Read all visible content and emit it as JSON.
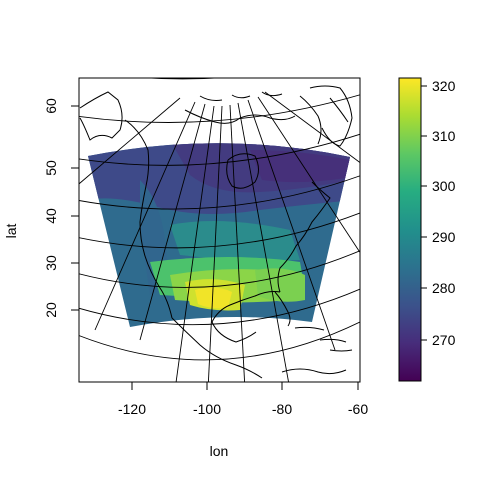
{
  "map": {
    "x_label": "lon",
    "y_label": "lat",
    "x_ticks": [
      "-120",
      "-100",
      "-80",
      "-60"
    ],
    "y_ticks": [
      "20",
      "30",
      "40",
      "50",
      "60"
    ],
    "x_range": [
      -134,
      -58
    ],
    "y_range": [
      7,
      65
    ],
    "subject": "Surface temperature field over North America on a Lambert conformal grid",
    "colors": {
      "frame": "#000000",
      "coast": "#000000",
      "graticule": "#000000"
    }
  },
  "colorbar": {
    "ticks": [
      "270",
      "280",
      "290",
      "300",
      "310",
      "320"
    ],
    "range": [
      262,
      322
    ],
    "palette": [
      "#440154",
      "#472D7B",
      "#3B528B",
      "#2C728E",
      "#21908C",
      "#27AD81",
      "#5DC863",
      "#AADC32",
      "#FDE725"
    ]
  }
}
